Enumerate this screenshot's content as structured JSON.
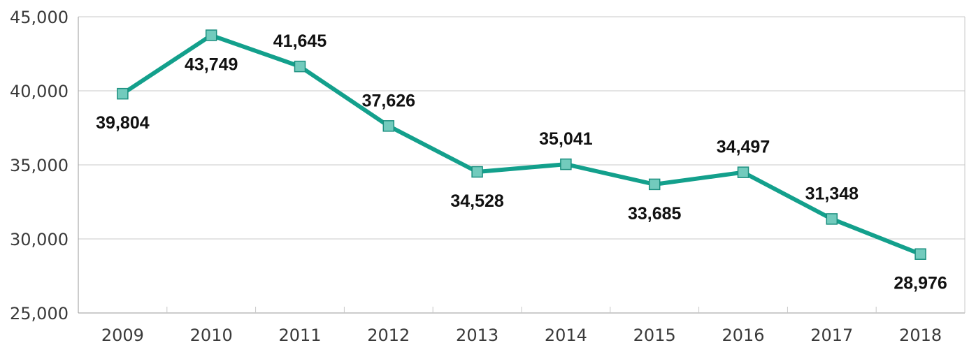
{
  "chart_data": {
    "type": "line",
    "title": "",
    "xlabel": "",
    "ylabel": "",
    "categories": [
      "2009",
      "2010",
      "2011",
      "2012",
      "2013",
      "2014",
      "2015",
      "2016",
      "2017",
      "2018"
    ],
    "series": [
      {
        "values": [
          39804,
          43749,
          41645,
          37626,
          34528,
          35041,
          33685,
          34497,
          31348,
          28976
        ],
        "data_labels": [
          "39,804",
          "43,749",
          "41,645",
          "37,626",
          "34,528",
          "35,041",
          "33,685",
          "34,497",
          "31,348",
          "28,976"
        ],
        "data_label_positions": [
          "below",
          "below",
          "above",
          "above",
          "below",
          "above",
          "below",
          "above",
          "above",
          "below"
        ]
      }
    ],
    "ylim": [
      25000,
      45000
    ],
    "yticks": [
      25000,
      30000,
      35000,
      40000,
      45000
    ],
    "ytick_labels": [
      "25,000",
      "30,000",
      "35,000",
      "40,000",
      "45,000"
    ],
    "grid": true,
    "legend": "none",
    "colors": {
      "line": "#13a08c",
      "marker_fill": "#72cbbd",
      "marker_stroke": "#1b8f7f",
      "grid": "#c8c8c8",
      "axis": "#9a9a9a"
    }
  }
}
